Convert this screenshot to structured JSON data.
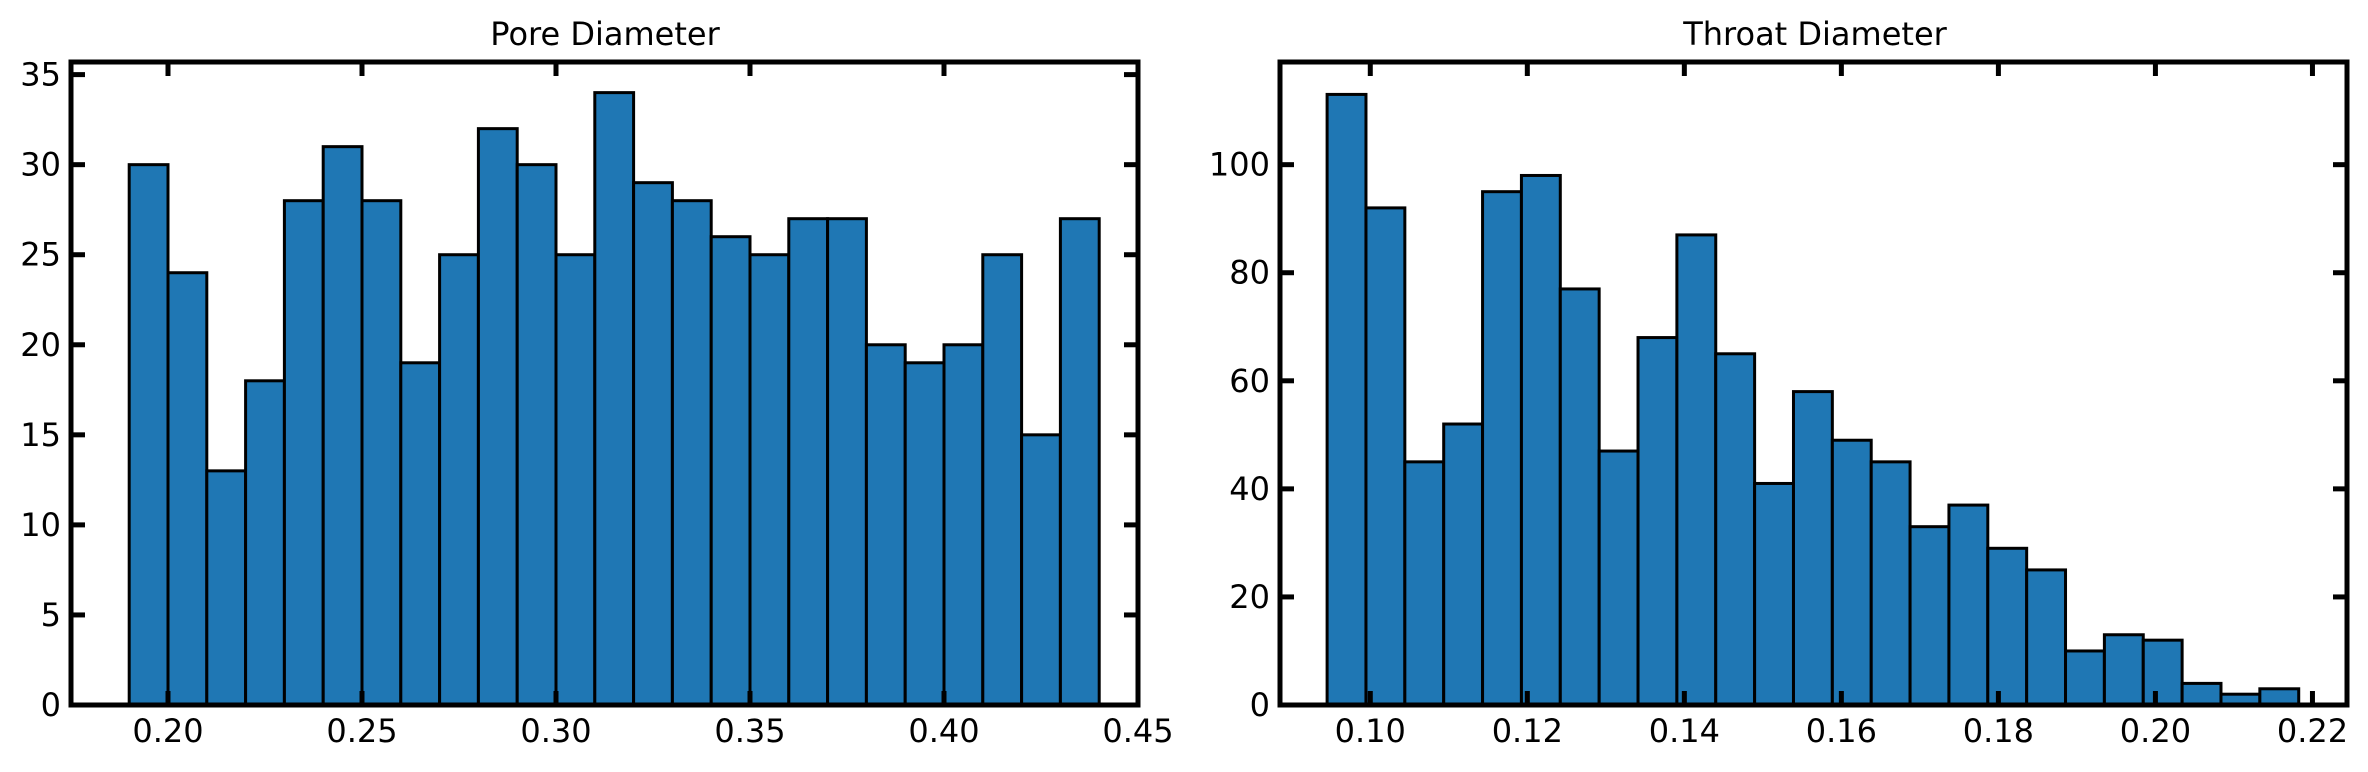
{
  "colors": {
    "bar_fill": "#1f77b4",
    "bar_edge": "#000000",
    "axis": "#000000",
    "background": "#ffffff"
  },
  "chart_data": [
    {
      "type": "bar",
      "title": "Pore Diameter",
      "xlabel": "",
      "ylabel": "",
      "bin_start": 0.19,
      "bin_width": 0.01,
      "values": [
        30,
        24,
        13,
        18,
        28,
        31,
        28,
        19,
        25,
        32,
        30,
        25,
        34,
        29,
        28,
        26,
        25,
        27,
        27,
        20,
        19,
        20,
        25,
        15,
        27
      ],
      "xlim": [
        0.175,
        0.45
      ],
      "ylim": [
        0,
        35.7
      ],
      "xticks": [
        0.2,
        0.25,
        0.3,
        0.35,
        0.4,
        0.45
      ],
      "xtick_labels": [
        "0.20",
        "0.25",
        "0.30",
        "0.35",
        "0.40",
        "0.45"
      ],
      "yticks": [
        0,
        5,
        10,
        15,
        20,
        25,
        30,
        35
      ],
      "ytick_labels": [
        "0",
        "5",
        "10",
        "15",
        "20",
        "25",
        "30",
        "35"
      ],
      "grid": false,
      "legend": "none"
    },
    {
      "type": "bar",
      "title": "Throat Diameter",
      "xlabel": "",
      "ylabel": "",
      "bin_start": 0.0945,
      "bin_width": 0.00495,
      "values": [
        113,
        92,
        45,
        52,
        95,
        98,
        77,
        47,
        68,
        87,
        65,
        41,
        58,
        49,
        45,
        33,
        37,
        29,
        25,
        10,
        13,
        12,
        4,
        2,
        3
      ],
      "xlim": [
        0.0885,
        0.2244
      ],
      "ylim": [
        0,
        119
      ],
      "xticks": [
        0.1,
        0.12,
        0.14,
        0.16,
        0.18,
        0.2,
        0.22
      ],
      "xtick_labels": [
        "0.10",
        "0.12",
        "0.14",
        "0.16",
        "0.18",
        "0.20",
        "0.22"
      ],
      "yticks": [
        0,
        20,
        40,
        60,
        80,
        100
      ],
      "ytick_labels": [
        "0",
        "20",
        "40",
        "60",
        "80",
        "100"
      ],
      "grid": false,
      "legend": "none"
    }
  ]
}
